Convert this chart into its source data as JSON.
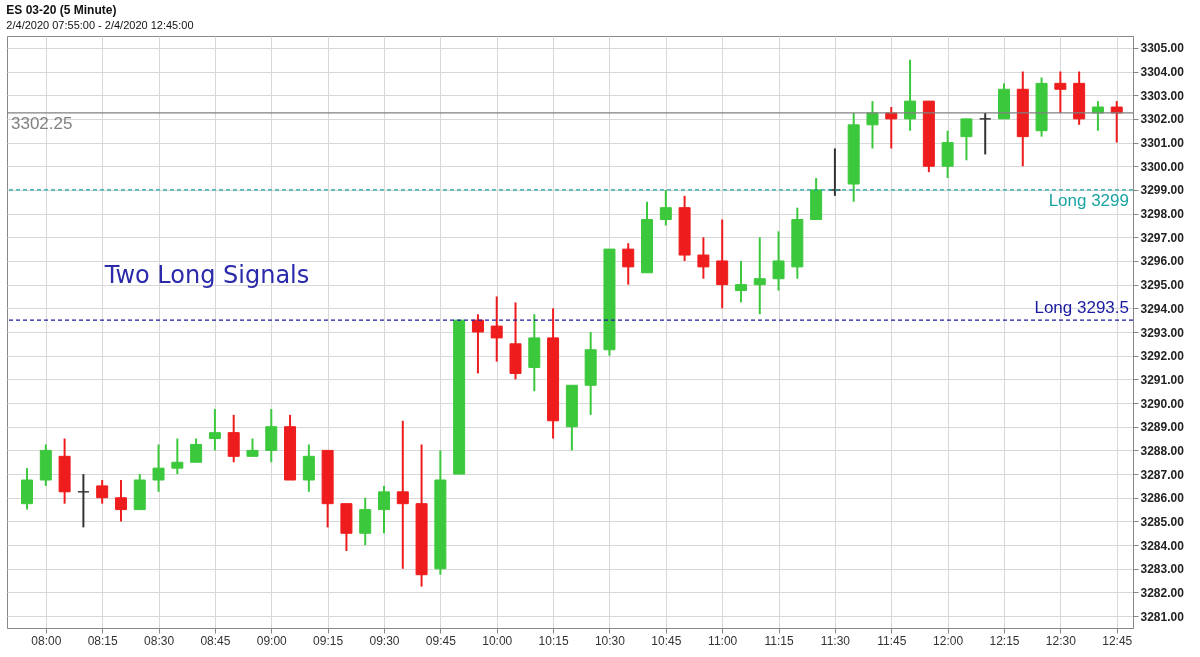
{
  "chart_data": {
    "type": "candlestick",
    "title": "ES 03-20 (5 Minute)",
    "subtitle": "2/4/2020 07:55:00 - 2/4/2020 12:45:00",
    "annotations": [
      "Two Long Signals"
    ],
    "x": [
      "2020-02-04T07:55",
      "2020-02-04T08:00",
      "2020-02-04T08:05",
      "2020-02-04T08:10",
      "2020-02-04T08:15",
      "2020-02-04T08:20",
      "2020-02-04T08:25",
      "2020-02-04T08:30",
      "2020-02-04T08:35",
      "2020-02-04T08:40",
      "2020-02-04T08:45",
      "2020-02-04T08:50",
      "2020-02-04T08:55",
      "2020-02-04T09:00",
      "2020-02-04T09:05",
      "2020-02-04T09:10",
      "2020-02-04T09:15",
      "2020-02-04T09:20",
      "2020-02-04T09:25",
      "2020-02-04T09:30",
      "2020-02-04T09:35",
      "2020-02-04T09:40",
      "2020-02-04T09:45",
      "2020-02-04T09:50",
      "2020-02-04T09:55",
      "2020-02-04T10:00",
      "2020-02-04T10:05",
      "2020-02-04T10:10",
      "2020-02-04T10:15",
      "2020-02-04T10:20",
      "2020-02-04T10:25",
      "2020-02-04T10:30",
      "2020-02-04T10:35",
      "2020-02-04T10:40",
      "2020-02-04T10:45",
      "2020-02-04T10:50",
      "2020-02-04T10:55",
      "2020-02-04T11:00",
      "2020-02-04T11:05",
      "2020-02-04T11:10",
      "2020-02-04T11:15",
      "2020-02-04T11:20",
      "2020-02-04T11:25",
      "2020-02-04T11:30",
      "2020-02-04T11:35",
      "2020-02-04T11:40",
      "2020-02-04T11:45",
      "2020-02-04T11:50",
      "2020-02-04T11:55",
      "2020-02-04T12:00",
      "2020-02-04T12:05",
      "2020-02-04T12:10",
      "2020-02-04T12:15",
      "2020-02-04T12:20",
      "2020-02-04T12:25",
      "2020-02-04T12:30",
      "2020-02-04T12:35",
      "2020-02-04T12:40",
      "2020-02-04T12:45"
    ],
    "ohlc": [
      [
        3285.75,
        3287.25,
        3285.5,
        3286.75
      ],
      [
        3286.75,
        3288.25,
        3286.5,
        3288
      ],
      [
        3287.75,
        3288.5,
        3285.75,
        3286.25
      ],
      [
        3286.25,
        3287,
        3284.75,
        3286.25
      ],
      [
        3286.5,
        3286.75,
        3285.75,
        3286
      ],
      [
        3286,
        3286.75,
        3285,
        3285.5
      ],
      [
        3285.5,
        3287,
        3285.5,
        3286.75
      ],
      [
        3286.75,
        3288.25,
        3286.25,
        3287.25
      ],
      [
        3287.25,
        3288.5,
        3287,
        3287.5
      ],
      [
        3287.5,
        3288.5,
        3287.5,
        3288.25
      ],
      [
        3288.5,
        3289.75,
        3288,
        3288.75
      ],
      [
        3288.75,
        3289.5,
        3287.5,
        3287.75
      ],
      [
        3287.75,
        3288.5,
        3287.75,
        3288
      ],
      [
        3288,
        3289.75,
        3287.5,
        3289
      ],
      [
        3289,
        3289.5,
        3286.75,
        3286.75
      ],
      [
        3286.75,
        3288.25,
        3286.25,
        3287.75
      ],
      [
        3288,
        3288,
        3284.75,
        3285.75
      ],
      [
        3285.75,
        3285.75,
        3283.75,
        3284.5
      ],
      [
        3284.5,
        3286,
        3284,
        3285.5
      ],
      [
        3285.5,
        3286.5,
        3284.5,
        3286.25
      ],
      [
        3286.25,
        3289.25,
        3283,
        3285.75
      ],
      [
        3285.75,
        3288.25,
        3282.25,
        3282.75
      ],
      [
        3283,
        3288,
        3282.75,
        3286.75
      ],
      [
        3287,
        3293.5,
        3287,
        3293.5
      ],
      [
        3293.5,
        3293.75,
        3291.25,
        3293
      ],
      [
        3293.25,
        3294.5,
        3291.75,
        3292.75
      ],
      [
        3292.5,
        3294.25,
        3291,
        3291.25
      ],
      [
        3291.5,
        3293.75,
        3290.5,
        3292.75
      ],
      [
        3292.75,
        3294,
        3288.5,
        3289.25
      ],
      [
        3289,
        3290.75,
        3288,
        3290.75
      ],
      [
        3290.75,
        3293,
        3289.5,
        3292.25
      ],
      [
        3292.25,
        3296.5,
        3292,
        3296.5
      ],
      [
        3296.5,
        3296.75,
        3295,
        3295.75
      ],
      [
        3295.5,
        3298.5,
        3295.5,
        3297.75
      ],
      [
        3297.75,
        3299,
        3297.5,
        3298.25
      ],
      [
        3298.25,
        3298.75,
        3296,
        3296.25
      ],
      [
        3296.25,
        3297,
        3295.25,
        3295.75
      ],
      [
        3296,
        3297.75,
        3294,
        3295
      ],
      [
        3294.75,
        3296,
        3294.25,
        3295
      ],
      [
        3295,
        3297,
        3293.75,
        3295.25
      ],
      [
        3295.25,
        3297.25,
        3294.75,
        3296
      ],
      [
        3295.75,
        3298.25,
        3295.25,
        3297.75
      ],
      [
        3297.75,
        3299.5,
        3297.75,
        3299
      ],
      [
        3299,
        3300.75,
        3298.75,
        3299
      ],
      [
        3299.25,
        3302.25,
        3298.5,
        3301.75
      ],
      [
        3301.75,
        3302.75,
        3300.75,
        3302.25
      ],
      [
        3302.25,
        3302.5,
        3300.75,
        3302
      ],
      [
        3302,
        3304.5,
        3301.5,
        3302.75
      ],
      [
        3302.75,
        3302.75,
        3299.75,
        3300
      ],
      [
        3300,
        3301.5,
        3299.5,
        3301
      ],
      [
        3301.25,
        3302,
        3300.25,
        3302
      ],
      [
        3302,
        3302.25,
        3300.5,
        3302
      ],
      [
        3302,
        3303.5,
        3302,
        3303.25
      ],
      [
        3303.25,
        3304,
        3300,
        3301.25
      ],
      [
        3301.5,
        3303.75,
        3301.25,
        3303.5
      ],
      [
        3303.5,
        3304,
        3302.25,
        3303.25
      ],
      [
        3303.5,
        3304,
        3301.75,
        3302
      ],
      [
        3302.25,
        3302.75,
        3301.5,
        3302.5
      ],
      [
        3302.5,
        3302.75,
        3301,
        3302.25
      ]
    ],
    "colors": [
      "#3cc83c",
      "#3cc83c",
      "#ee1c1c",
      "#333333",
      "#ee1c1c",
      "#ee1c1c",
      "#3cc83c",
      "#3cc83c",
      "#3cc83c",
      "#3cc83c",
      "#3cc83c",
      "#ee1c1c",
      "#3cc83c",
      "#3cc83c",
      "#ee1c1c",
      "#3cc83c",
      "#ee1c1c",
      "#ee1c1c",
      "#3cc83c",
      "#3cc83c",
      "#ee1c1c",
      "#ee1c1c",
      "#3cc83c",
      "#3cc83c",
      "#ee1c1c",
      "#ee1c1c",
      "#ee1c1c",
      "#3cc83c",
      "#ee1c1c",
      "#3cc83c",
      "#3cc83c",
      "#3cc83c",
      "#ee1c1c",
      "#3cc83c",
      "#3cc83c",
      "#ee1c1c",
      "#ee1c1c",
      "#ee1c1c",
      "#3cc83c",
      "#3cc83c",
      "#3cc83c",
      "#3cc83c",
      "#3cc83c",
      "#333333",
      "#3cc83c",
      "#3cc83c",
      "#ee1c1c",
      "#3cc83c",
      "#ee1c1c",
      "#3cc83c",
      "#3cc83c",
      "#333333",
      "#3cc83c",
      "#ee1c1c",
      "#3cc83c",
      "#ee1c1c",
      "#ee1c1c",
      "#3cc83c",
      "#ee1c1c"
    ],
    "xlim": [
      "2020-02-04T07:51",
      "2020-02-04T12:48"
    ],
    "xticks": [
      {
        "value": "2020-02-04T08:00",
        "label": "08:00"
      },
      {
        "value": "2020-02-04T08:15",
        "label": "08:15"
      },
      {
        "value": "2020-02-04T08:30",
        "label": "08:30"
      },
      {
        "value": "2020-02-04T08:45",
        "label": "08:45"
      },
      {
        "value": "2020-02-04T09:00",
        "label": "09:00"
      },
      {
        "value": "2020-02-04T09:15",
        "label": "09:15"
      },
      {
        "value": "2020-02-04T09:30",
        "label": "09:30"
      },
      {
        "value": "2020-02-04T09:45",
        "label": "09:45"
      },
      {
        "value": "2020-02-04T10:00",
        "label": "10:00"
      },
      {
        "value": "2020-02-04T10:15",
        "label": "10:15"
      },
      {
        "value": "2020-02-04T10:30",
        "label": "10:30"
      },
      {
        "value": "2020-02-04T10:45",
        "label": "10:45"
      },
      {
        "value": "2020-02-04T11:00",
        "label": "11:00"
      },
      {
        "value": "2020-02-04T11:15",
        "label": "11:15"
      },
      {
        "value": "2020-02-04T11:30",
        "label": "11:30"
      },
      {
        "value": "2020-02-04T11:45",
        "label": "11:45"
      },
      {
        "value": "2020-02-04T12:00",
        "label": "12:00"
      },
      {
        "value": "2020-02-04T12:15",
        "label": "12:15"
      },
      {
        "value": "2020-02-04T12:30",
        "label": "12:30"
      },
      {
        "value": "2020-02-04T12:45",
        "label": "12:45"
      }
    ],
    "ylim": [
      3280.5,
      3305.5
    ],
    "yticks": [
      {
        "value": 3281,
        "label": "3281.00"
      },
      {
        "value": 3282,
        "label": "3282.00"
      },
      {
        "value": 3283,
        "label": "3283.00"
      },
      {
        "value": 3284,
        "label": "3284.00"
      },
      {
        "value": 3285,
        "label": "3285.00"
      },
      {
        "value": 3286,
        "label": "3286.00"
      },
      {
        "value": 3287,
        "label": "3287.00"
      },
      {
        "value": 3288,
        "label": "3288.00"
      },
      {
        "value": 3289,
        "label": "3289.00"
      },
      {
        "value": 3290,
        "label": "3290.00"
      },
      {
        "value": 3291,
        "label": "3291.00"
      },
      {
        "value": 3292,
        "label": "3292.00"
      },
      {
        "value": 3293,
        "label": "3293.00"
      },
      {
        "value": 3294,
        "label": "3294.00"
      },
      {
        "value": 3295,
        "label": "3295.00"
      },
      {
        "value": 3296,
        "label": "3296.00"
      },
      {
        "value": 3297,
        "label": "3297.00"
      },
      {
        "value": 3298,
        "label": "3298.00"
      },
      {
        "value": 3299,
        "label": "3299.00"
      },
      {
        "value": 3300,
        "label": "3300.00"
      },
      {
        "value": 3301,
        "label": "3301.00"
      },
      {
        "value": 3302,
        "label": "3302.00"
      },
      {
        "value": 3303,
        "label": "3303.00"
      },
      {
        "value": 3304,
        "label": "3304.00"
      },
      {
        "value": 3305,
        "label": "3305.00"
      }
    ],
    "ref_lines": [
      {
        "axis": "y",
        "value": 3299,
        "label": "Long 3299",
        "color": "#1aa3a3",
        "line_style": "dashed"
      },
      {
        "axis": "y",
        "value": 3293.5,
        "label": "Long 3293.5",
        "color": "#1a1aa0",
        "line_style": "dashed"
      },
      {
        "axis": "y",
        "value": 3302.25,
        "label": "3302.25",
        "color": "#808080",
        "line_style": "solid"
      }
    ],
    "grid": true
  }
}
